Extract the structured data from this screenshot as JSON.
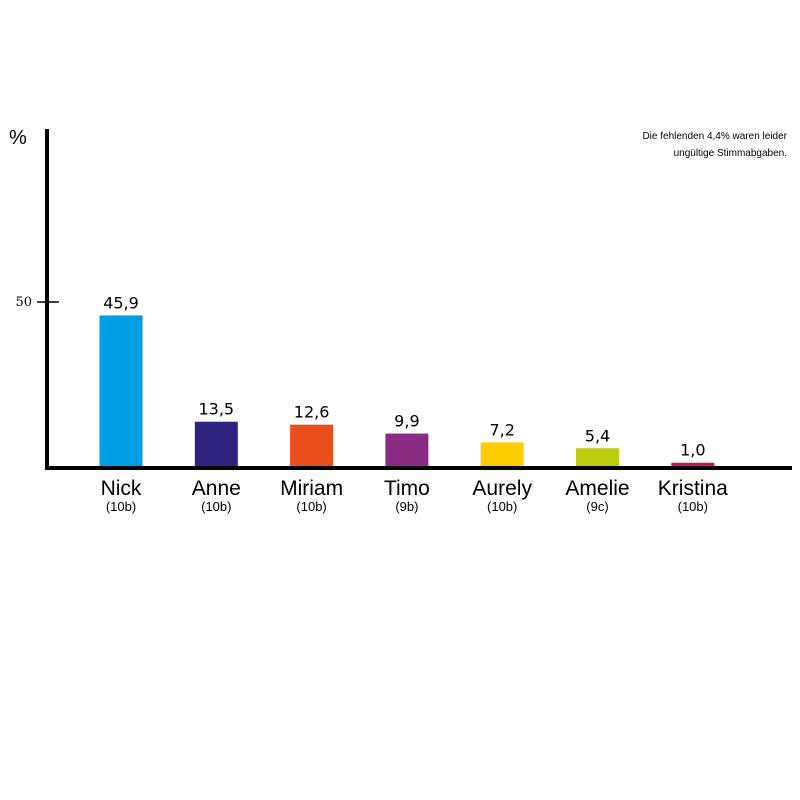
{
  "chart_data": {
    "type": "bar",
    "ylabel": "%",
    "y_ticks": [
      {
        "value": 50,
        "label": "50"
      }
    ],
    "note_lines": [
      "Die fehlenden 4,4% waren leider",
      "ungültige Stimmabgaben."
    ],
    "categories": [
      "Nick",
      "Anne",
      "Miriam",
      "Timo",
      "Aurely",
      "Amelie",
      "Kristina"
    ],
    "classes": [
      "(10b)",
      "(10b)",
      "(10b)",
      "(9b)",
      "(10b)",
      "(9c)",
      "(10b)"
    ],
    "values": [
      45.9,
      13.5,
      12.6,
      9.9,
      7.2,
      5.4,
      1.0
    ],
    "value_labels": [
      "45,9",
      "13,5",
      "12,6",
      "9,9",
      "7,2",
      "5,4",
      "1,0"
    ],
    "colors": [
      "#009FE3",
      "#2E2480",
      "#E94E1B",
      "#8A2B83",
      "#FFCC00",
      "#BACD0E",
      "#D0115B"
    ],
    "grid": false
  }
}
